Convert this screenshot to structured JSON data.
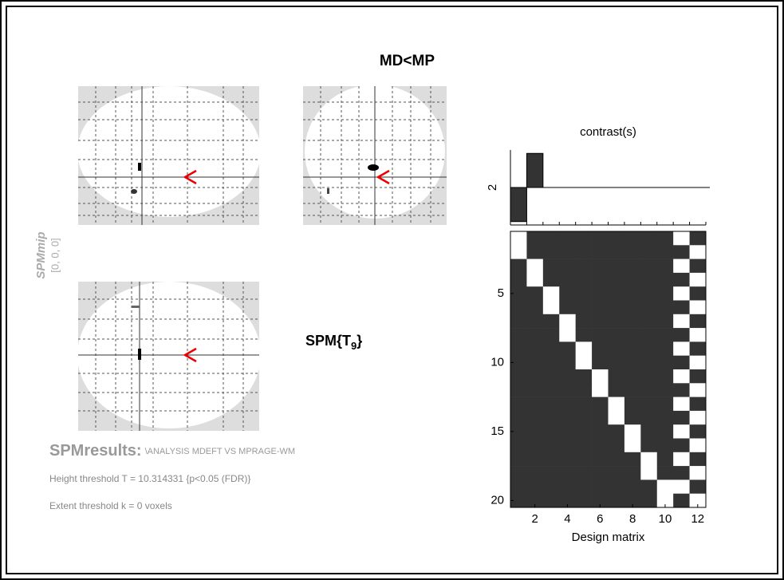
{
  "title": "MD<MP",
  "mip_label": "SPMmip",
  "mip_coords": "[0, 0, 0]",
  "stat_label": {
    "text": "SPM{T",
    "subscript": "9",
    "close": "}"
  },
  "results": {
    "heading": "SPMresults:",
    "path": "\\ANALYSIS MDEFT VS MPRAGE-WM",
    "height_threshold": "Height threshold T = 10.314331  {p<0.05 (FDR)}",
    "extent_threshold": "Extent threshold k = 0 voxels"
  },
  "contrast": {
    "title": "contrast(s)",
    "label": "2",
    "values": [
      -1,
      1,
      0,
      0,
      0,
      0,
      0,
      0,
      0,
      0,
      0,
      0
    ],
    "ylim": [
      -1.1,
      1.1
    ]
  },
  "design_matrix": {
    "xlabel": "Design matrix",
    "rows": [
      [
        1,
        0,
        0,
        0,
        0,
        0,
        0,
        0,
        0,
        0,
        1,
        0
      ],
      [
        1,
        0,
        0,
        0,
        0,
        0,
        0,
        0,
        0,
        0,
        0,
        1
      ],
      [
        0,
        1,
        0,
        0,
        0,
        0,
        0,
        0,
        0,
        0,
        1,
        0
      ],
      [
        0,
        1,
        0,
        0,
        0,
        0,
        0,
        0,
        0,
        0,
        0,
        1
      ],
      [
        0,
        0,
        1,
        0,
        0,
        0,
        0,
        0,
        0,
        0,
        1,
        0
      ],
      [
        0,
        0,
        1,
        0,
        0,
        0,
        0,
        0,
        0,
        0,
        0,
        1
      ],
      [
        0,
        0,
        0,
        1,
        0,
        0,
        0,
        0,
        0,
        0,
        1,
        0
      ],
      [
        0,
        0,
        0,
        1,
        0,
        0,
        0,
        0,
        0,
        0,
        0,
        1
      ],
      [
        0,
        0,
        0,
        0,
        1,
        0,
        0,
        0,
        0,
        0,
        1,
        0
      ],
      [
        0,
        0,
        0,
        0,
        1,
        0,
        0,
        0,
        0,
        0,
        0,
        1
      ],
      [
        0,
        0,
        0,
        0,
        0,
        1,
        0,
        0,
        0,
        0,
        1,
        0
      ],
      [
        0,
        0,
        0,
        0,
        0,
        1,
        0,
        0,
        0,
        0,
        0,
        1
      ],
      [
        0,
        0,
        0,
        0,
        0,
        0,
        1,
        0,
        0,
        0,
        1,
        0
      ],
      [
        0,
        0,
        0,
        0,
        0,
        0,
        1,
        0,
        0,
        0,
        0,
        1
      ],
      [
        0,
        0,
        0,
        0,
        0,
        0,
        0,
        1,
        0,
        0,
        1,
        0
      ],
      [
        0,
        0,
        0,
        0,
        0,
        0,
        0,
        1,
        0,
        0,
        0,
        1
      ],
      [
        0,
        0,
        0,
        0,
        0,
        0,
        0,
        0,
        1,
        0,
        1,
        0
      ],
      [
        0,
        0,
        0,
        0,
        0,
        0,
        0,
        0,
        1,
        0,
        0,
        1
      ],
      [
        0,
        0,
        0,
        0,
        0,
        0,
        0,
        0,
        0,
        1,
        1,
        0
      ],
      [
        0,
        0,
        0,
        0,
        0,
        0,
        0,
        0,
        0,
        1,
        0,
        1
      ]
    ],
    "xticks": [
      2,
      4,
      6,
      8,
      10,
      12
    ],
    "yticks": [
      5,
      10,
      15,
      20
    ]
  }
}
